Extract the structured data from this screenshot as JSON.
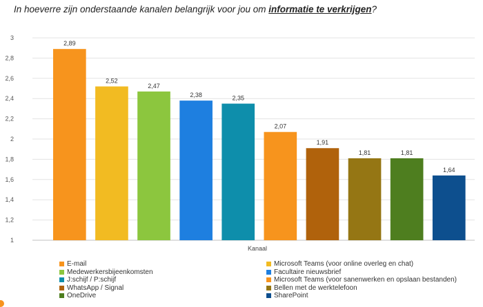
{
  "title": {
    "prefix": "In hoeverre zijn onderstaande kanalen belangrijk voor jou om ",
    "emphasis": "informatie te verkrijgen",
    "suffix": "?"
  },
  "chart_data": {
    "type": "bar",
    "xlabel": "Kanaal",
    "ylabel": "",
    "ylim": [
      1,
      3
    ],
    "yticks": [
      "1",
      "1,2",
      "1,4",
      "1,6",
      "1,8",
      "2",
      "2,2",
      "2,4",
      "2,6",
      "2,8",
      "3"
    ],
    "grid": true,
    "legend_position": "bottom",
    "series": [
      {
        "name": "E-mail",
        "value": 2.89,
        "label": "2,89",
        "color": "#f7941d"
      },
      {
        "name": "Microsoft Teams (voor online overleg en chat)",
        "value": 2.52,
        "label": "2,52",
        "color": "#f2bb22"
      },
      {
        "name": "Medewerkersbijeenkomsten",
        "value": 2.47,
        "label": "2,47",
        "color": "#8cc63e"
      },
      {
        "name": "Facultaire nieuwsbrief",
        "value": 2.38,
        "label": "2,38",
        "color": "#1e7fe0"
      },
      {
        "name": "J:schijf / P:schijf",
        "value": 2.35,
        "label": "2,35",
        "color": "#0e8eab"
      },
      {
        "name": "Microsoft Teams (voor sanenwerken en opslaan bestanden)",
        "value": 2.07,
        "label": "2,07",
        "color": "#f7941d"
      },
      {
        "name": "WhatsApp / Signal",
        "value": 1.91,
        "label": "1,91",
        "color": "#b0620c"
      },
      {
        "name": "Bellen met de werktelefoon",
        "value": 1.81,
        "label": "1,81",
        "color": "#957614"
      },
      {
        "name": "OneDrive",
        "value": 1.81,
        "label": "1,81",
        "color": "#4e7e1f"
      },
      {
        "name": "SharePoint",
        "value": 1.64,
        "label": "1,64",
        "color": "#0d4f8e"
      }
    ]
  }
}
